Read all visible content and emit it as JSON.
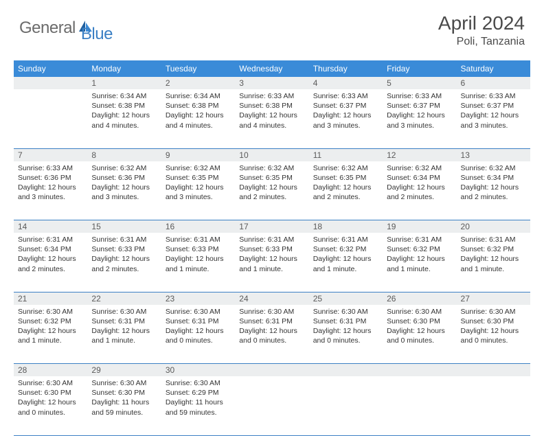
{
  "brand": {
    "word1": "General",
    "word2": "Blue"
  },
  "title": "April 2024",
  "location": "Poli, Tanzania",
  "colors": {
    "header_bg": "#3a8bd8",
    "header_text": "#ffffff",
    "daynum_bg": "#eceeef",
    "rule": "#3a7fc4",
    "logo_gray": "#6b6b6b",
    "logo_blue": "#3a7fc4"
  },
  "weekdays": [
    "Sunday",
    "Monday",
    "Tuesday",
    "Wednesday",
    "Thursday",
    "Friday",
    "Saturday"
  ],
  "weeks": [
    [
      null,
      {
        "n": "1",
        "sr": "Sunrise: 6:34 AM",
        "ss": "Sunset: 6:38 PM",
        "dl": "Daylight: 12 hours and 4 minutes."
      },
      {
        "n": "2",
        "sr": "Sunrise: 6:34 AM",
        "ss": "Sunset: 6:38 PM",
        "dl": "Daylight: 12 hours and 4 minutes."
      },
      {
        "n": "3",
        "sr": "Sunrise: 6:33 AM",
        "ss": "Sunset: 6:38 PM",
        "dl": "Daylight: 12 hours and 4 minutes."
      },
      {
        "n": "4",
        "sr": "Sunrise: 6:33 AM",
        "ss": "Sunset: 6:37 PM",
        "dl": "Daylight: 12 hours and 3 minutes."
      },
      {
        "n": "5",
        "sr": "Sunrise: 6:33 AM",
        "ss": "Sunset: 6:37 PM",
        "dl": "Daylight: 12 hours and 3 minutes."
      },
      {
        "n": "6",
        "sr": "Sunrise: 6:33 AM",
        "ss": "Sunset: 6:37 PM",
        "dl": "Daylight: 12 hours and 3 minutes."
      }
    ],
    [
      {
        "n": "7",
        "sr": "Sunrise: 6:33 AM",
        "ss": "Sunset: 6:36 PM",
        "dl": "Daylight: 12 hours and 3 minutes."
      },
      {
        "n": "8",
        "sr": "Sunrise: 6:32 AM",
        "ss": "Sunset: 6:36 PM",
        "dl": "Daylight: 12 hours and 3 minutes."
      },
      {
        "n": "9",
        "sr": "Sunrise: 6:32 AM",
        "ss": "Sunset: 6:35 PM",
        "dl": "Daylight: 12 hours and 3 minutes."
      },
      {
        "n": "10",
        "sr": "Sunrise: 6:32 AM",
        "ss": "Sunset: 6:35 PM",
        "dl": "Daylight: 12 hours and 2 minutes."
      },
      {
        "n": "11",
        "sr": "Sunrise: 6:32 AM",
        "ss": "Sunset: 6:35 PM",
        "dl": "Daylight: 12 hours and 2 minutes."
      },
      {
        "n": "12",
        "sr": "Sunrise: 6:32 AM",
        "ss": "Sunset: 6:34 PM",
        "dl": "Daylight: 12 hours and 2 minutes."
      },
      {
        "n": "13",
        "sr": "Sunrise: 6:32 AM",
        "ss": "Sunset: 6:34 PM",
        "dl": "Daylight: 12 hours and 2 minutes."
      }
    ],
    [
      {
        "n": "14",
        "sr": "Sunrise: 6:31 AM",
        "ss": "Sunset: 6:34 PM",
        "dl": "Daylight: 12 hours and 2 minutes."
      },
      {
        "n": "15",
        "sr": "Sunrise: 6:31 AM",
        "ss": "Sunset: 6:33 PM",
        "dl": "Daylight: 12 hours and 2 minutes."
      },
      {
        "n": "16",
        "sr": "Sunrise: 6:31 AM",
        "ss": "Sunset: 6:33 PM",
        "dl": "Daylight: 12 hours and 1 minute."
      },
      {
        "n": "17",
        "sr": "Sunrise: 6:31 AM",
        "ss": "Sunset: 6:33 PM",
        "dl": "Daylight: 12 hours and 1 minute."
      },
      {
        "n": "18",
        "sr": "Sunrise: 6:31 AM",
        "ss": "Sunset: 6:32 PM",
        "dl": "Daylight: 12 hours and 1 minute."
      },
      {
        "n": "19",
        "sr": "Sunrise: 6:31 AM",
        "ss": "Sunset: 6:32 PM",
        "dl": "Daylight: 12 hours and 1 minute."
      },
      {
        "n": "20",
        "sr": "Sunrise: 6:31 AM",
        "ss": "Sunset: 6:32 PM",
        "dl": "Daylight: 12 hours and 1 minute."
      }
    ],
    [
      {
        "n": "21",
        "sr": "Sunrise: 6:30 AM",
        "ss": "Sunset: 6:32 PM",
        "dl": "Daylight: 12 hours and 1 minute."
      },
      {
        "n": "22",
        "sr": "Sunrise: 6:30 AM",
        "ss": "Sunset: 6:31 PM",
        "dl": "Daylight: 12 hours and 1 minute."
      },
      {
        "n": "23",
        "sr": "Sunrise: 6:30 AM",
        "ss": "Sunset: 6:31 PM",
        "dl": "Daylight: 12 hours and 0 minutes."
      },
      {
        "n": "24",
        "sr": "Sunrise: 6:30 AM",
        "ss": "Sunset: 6:31 PM",
        "dl": "Daylight: 12 hours and 0 minutes."
      },
      {
        "n": "25",
        "sr": "Sunrise: 6:30 AM",
        "ss": "Sunset: 6:31 PM",
        "dl": "Daylight: 12 hours and 0 minutes."
      },
      {
        "n": "26",
        "sr": "Sunrise: 6:30 AM",
        "ss": "Sunset: 6:30 PM",
        "dl": "Daylight: 12 hours and 0 minutes."
      },
      {
        "n": "27",
        "sr": "Sunrise: 6:30 AM",
        "ss": "Sunset: 6:30 PM",
        "dl": "Daylight: 12 hours and 0 minutes."
      }
    ],
    [
      {
        "n": "28",
        "sr": "Sunrise: 6:30 AM",
        "ss": "Sunset: 6:30 PM",
        "dl": "Daylight: 12 hours and 0 minutes."
      },
      {
        "n": "29",
        "sr": "Sunrise: 6:30 AM",
        "ss": "Sunset: 6:30 PM",
        "dl": "Daylight: 11 hours and 59 minutes."
      },
      {
        "n": "30",
        "sr": "Sunrise: 6:30 AM",
        "ss": "Sunset: 6:29 PM",
        "dl": "Daylight: 11 hours and 59 minutes."
      },
      null,
      null,
      null,
      null
    ]
  ]
}
